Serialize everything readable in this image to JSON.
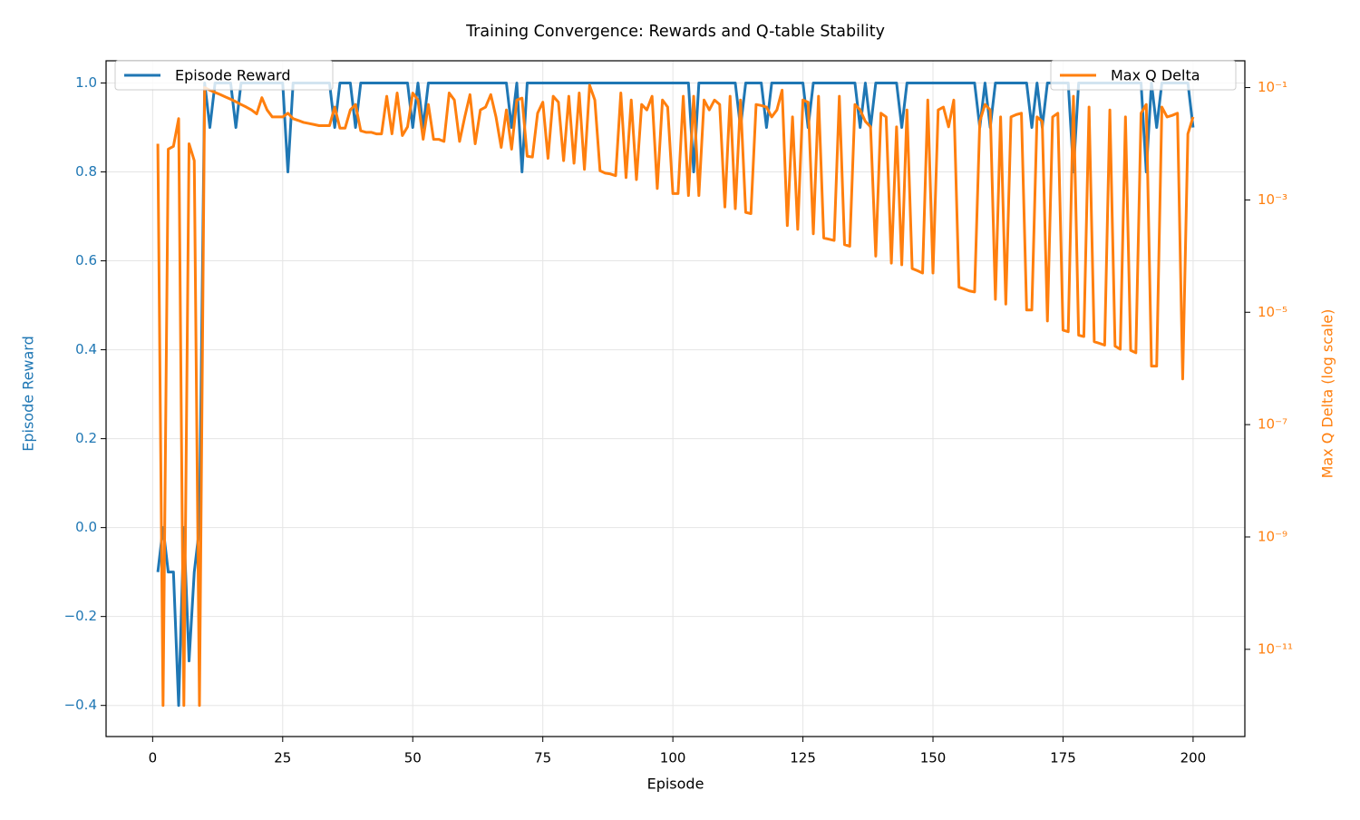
{
  "chart_data": {
    "type": "line",
    "title": "Training Convergence: Rewards and Q-table Stability",
    "xlabel": "Episode",
    "ylabel": "Episode Reward",
    "y2label": "Max Q Delta (log scale)",
    "x": [
      1,
      2,
      3,
      4,
      5,
      6,
      7,
      8,
      9,
      10,
      11,
      12,
      13,
      14,
      15,
      16,
      17,
      18,
      19,
      20,
      21,
      22,
      23,
      24,
      25,
      26,
      27,
      28,
      29,
      30,
      31,
      32,
      33,
      34,
      35,
      36,
      37,
      38,
      39,
      40,
      41,
      42,
      43,
      44,
      45,
      46,
      47,
      48,
      49,
      50,
      51,
      52,
      53,
      54,
      55,
      56,
      57,
      58,
      59,
      60,
      61,
      62,
      63,
      64,
      65,
      66,
      67,
      68,
      69,
      70,
      71,
      72,
      73,
      74,
      75,
      76,
      77,
      78,
      79,
      80,
      81,
      82,
      83,
      84,
      85,
      86,
      87,
      88,
      89,
      90,
      91,
      92,
      93,
      94,
      95,
      96,
      97,
      98,
      99,
      100,
      101,
      102,
      103,
      104,
      105,
      106,
      107,
      108,
      109,
      110,
      111,
      112,
      113,
      114,
      115,
      116,
      117,
      118,
      119,
      120,
      121,
      122,
      123,
      124,
      125,
      126,
      127,
      128,
      129,
      130,
      131,
      132,
      133,
      134,
      135,
      136,
      137,
      138,
      139,
      140,
      141,
      142,
      143,
      144,
      145,
      146,
      147,
      148,
      149,
      150,
      151,
      152,
      153,
      154,
      155,
      156,
      157,
      158,
      159,
      160,
      161,
      162,
      163,
      164,
      165,
      166,
      167,
      168,
      169,
      170,
      171,
      172,
      173,
      174,
      175,
      176,
      177,
      178,
      179,
      180,
      181,
      182,
      183,
      184,
      185,
      186,
      187,
      188,
      189,
      190,
      191,
      192,
      193,
      194,
      195,
      196,
      197,
      198,
      199,
      200
    ],
    "series": [
      {
        "name": "Episode Reward",
        "color": "#1f77b4",
        "axis": "y",
        "legend_loc": "upper left",
        "values": [
          -0.1,
          0.0,
          -0.1,
          -0.1,
          -0.4,
          0.0,
          -0.3,
          -0.1,
          0.0,
          1.0,
          0.9,
          1,
          1,
          1,
          1,
          0.9,
          1,
          1,
          1,
          1,
          1,
          1,
          1,
          1,
          1,
          0.8,
          1,
          1,
          1,
          1,
          1,
          1,
          1,
          1,
          0.9,
          1,
          1,
          1,
          0.9,
          1,
          1,
          1,
          1,
          1,
          1,
          1,
          1,
          1,
          1,
          0.9,
          1,
          0.9,
          1,
          1,
          1,
          1,
          1,
          1,
          1,
          1,
          1,
          1,
          1,
          1,
          1,
          1,
          1,
          1,
          0.9,
          1,
          0.8,
          1,
          1,
          1,
          1,
          1,
          1,
          1,
          1,
          1,
          1,
          1,
          1,
          1,
          1,
          1,
          1,
          1,
          1,
          1,
          1,
          1,
          1,
          1,
          1,
          1,
          1,
          1,
          1,
          1,
          1,
          1,
          1,
          0.8,
          1,
          1,
          1,
          1,
          1,
          1,
          1,
          1,
          0.9,
          1,
          1,
          1,
          1,
          0.9,
          1,
          1,
          1,
          1,
          1,
          1,
          1,
          0.9,
          1,
          1,
          1,
          1,
          1,
          1,
          1,
          1,
          1,
          0.9,
          1,
          0.9,
          1,
          1,
          1,
          1,
          1,
          0.9,
          1,
          1,
          1,
          1,
          1,
          1,
          1,
          1,
          1,
          1,
          1,
          1,
          1,
          1,
          0.9,
          1,
          0.9,
          1,
          1,
          1,
          1,
          1,
          1,
          1,
          0.9,
          1,
          0.9,
          1,
          1,
          1,
          1,
          1,
          0.8,
          1,
          1,
          1,
          1,
          1,
          1,
          1,
          1,
          1,
          1,
          1,
          1,
          1,
          0.8,
          1,
          0.9,
          1,
          1,
          1,
          1,
          1,
          1,
          0.9
        ]
      },
      {
        "name": "Max Q Delta",
        "color": "#ff7f0e",
        "axis": "y2",
        "legend_loc": "upper right",
        "values": [
          0.01,
          1e-12,
          0.008,
          0.009,
          0.028,
          1e-12,
          0.01,
          0.005,
          1e-12,
          0.1,
          0.09,
          0.082,
          0.075,
          0.068,
          0.062,
          0.056,
          0.05,
          0.045,
          0.04,
          0.034,
          0.066,
          0.04,
          0.03,
          0.03,
          0.03,
          0.035,
          0.028,
          0.026,
          0.024,
          0.023,
          0.022,
          0.021,
          0.021,
          0.021,
          0.045,
          0.019,
          0.019,
          0.04,
          0.05,
          0.017,
          0.016,
          0.016,
          0.015,
          0.015,
          0.07,
          0.015,
          0.08,
          0.014,
          0.02,
          0.08,
          0.06,
          0.012,
          0.05,
          0.012,
          0.012,
          0.011,
          0.08,
          0.06,
          0.011,
          0.03,
          0.075,
          0.01,
          0.04,
          0.045,
          0.075,
          0.03,
          0.0086,
          0.04,
          0.008,
          0.06,
          0.065,
          0.006,
          0.0058,
          0.035,
          0.055,
          0.0055,
          0.07,
          0.055,
          0.005,
          0.07,
          0.0045,
          0.08,
          0.0035,
          0.11,
          0.06,
          0.0033,
          0.003,
          0.0029,
          0.0027,
          0.08,
          0.0025,
          0.06,
          0.0023,
          0.05,
          0.04,
          0.07,
          0.0016,
          0.06,
          0.045,
          0.0013,
          0.0013,
          0.07,
          0.0012,
          0.07,
          0.0012,
          0.06,
          0.04,
          0.06,
          0.05,
          0.00075,
          0.07,
          0.0007,
          0.06,
          0.0006,
          0.00057,
          0.05,
          0.048,
          0.045,
          0.03,
          0.04,
          0.09,
          0.00035,
          0.03,
          0.0003,
          0.06,
          0.055,
          0.00025,
          0.07,
          0.00021,
          0.0002,
          0.00019,
          0.07,
          0.00016,
          0.00015,
          0.05,
          0.04,
          0.025,
          0.02,
          0.0001,
          0.035,
          0.03,
          7.5e-05,
          0.02,
          7e-05,
          0.04,
          6e-05,
          5.5e-05,
          5e-05,
          0.06,
          5e-05,
          0.04,
          0.045,
          0.02,
          0.06,
          2.8e-05,
          2.6e-05,
          2.4e-05,
          2.3e-05,
          0.025,
          0.05,
          0.04,
          1.7e-05,
          0.03,
          1.4e-05,
          0.03,
          0.033,
          0.035,
          1.1e-05,
          1.1e-05,
          0.03,
          0.025,
          7e-06,
          0.03,
          0.035,
          4.8e-06,
          4.5e-06,
          0.07,
          3.9e-06,
          3.7e-06,
          0.045,
          3e-06,
          2.8e-06,
          2.6e-06,
          0.04,
          2.5e-06,
          2.2e-06,
          0.03,
          2.1e-06,
          1.9e-06,
          0.035,
          0.05,
          1.1e-06,
          1.1e-06,
          0.045,
          0.03,
          0.032,
          0.035,
          6.5e-07,
          0.015,
          0.03
        ]
      }
    ],
    "xlim": [
      -8.95,
      209.95
    ],
    "xticks": [
      0,
      25,
      50,
      75,
      100,
      125,
      150,
      175,
      200
    ],
    "ylim": [
      -0.47,
      1.05
    ],
    "yticks": [
      {
        "value": -0.4,
        "label": "−0.4"
      },
      {
        "value": -0.2,
        "label": "−0.2"
      },
      {
        "value": 0,
        "label": "0.0"
      },
      0.2,
      0.4,
      0.6,
      0.8,
      {
        "value": 1,
        "label": "1.0"
      }
    ],
    "y2scale": "log",
    "y2lim": [
      2.8e-13,
      0.3
    ],
    "y2ticks": [
      {
        "value": 1e-11,
        "label": "10⁻¹¹"
      },
      {
        "value": 1e-09,
        "label": "10⁻⁹"
      },
      {
        "value": 1e-07,
        "label": "10⁻⁷"
      },
      {
        "value": 1e-05,
        "label": "10⁻⁵"
      },
      {
        "value": 0.001,
        "label": "10⁻³"
      },
      {
        "value": 0.1,
        "label": "10⁻¹"
      }
    ],
    "grid": true
  }
}
